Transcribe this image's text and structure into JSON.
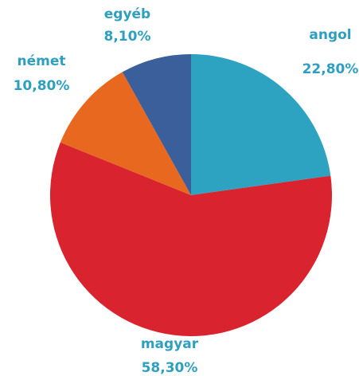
{
  "chart_data": {
    "type": "pie",
    "categories": [
      "angol",
      "magyar",
      "német",
      "egyéb"
    ],
    "values": [
      22.8,
      58.3,
      10.8,
      8.1
    ],
    "value_labels": [
      "22,80%",
      "58,30%",
      "10,80%",
      "8,10%"
    ],
    "colors": [
      "#2ea3c1",
      "#d9232e",
      "#e8681f",
      "#3a5f9a"
    ]
  }
}
